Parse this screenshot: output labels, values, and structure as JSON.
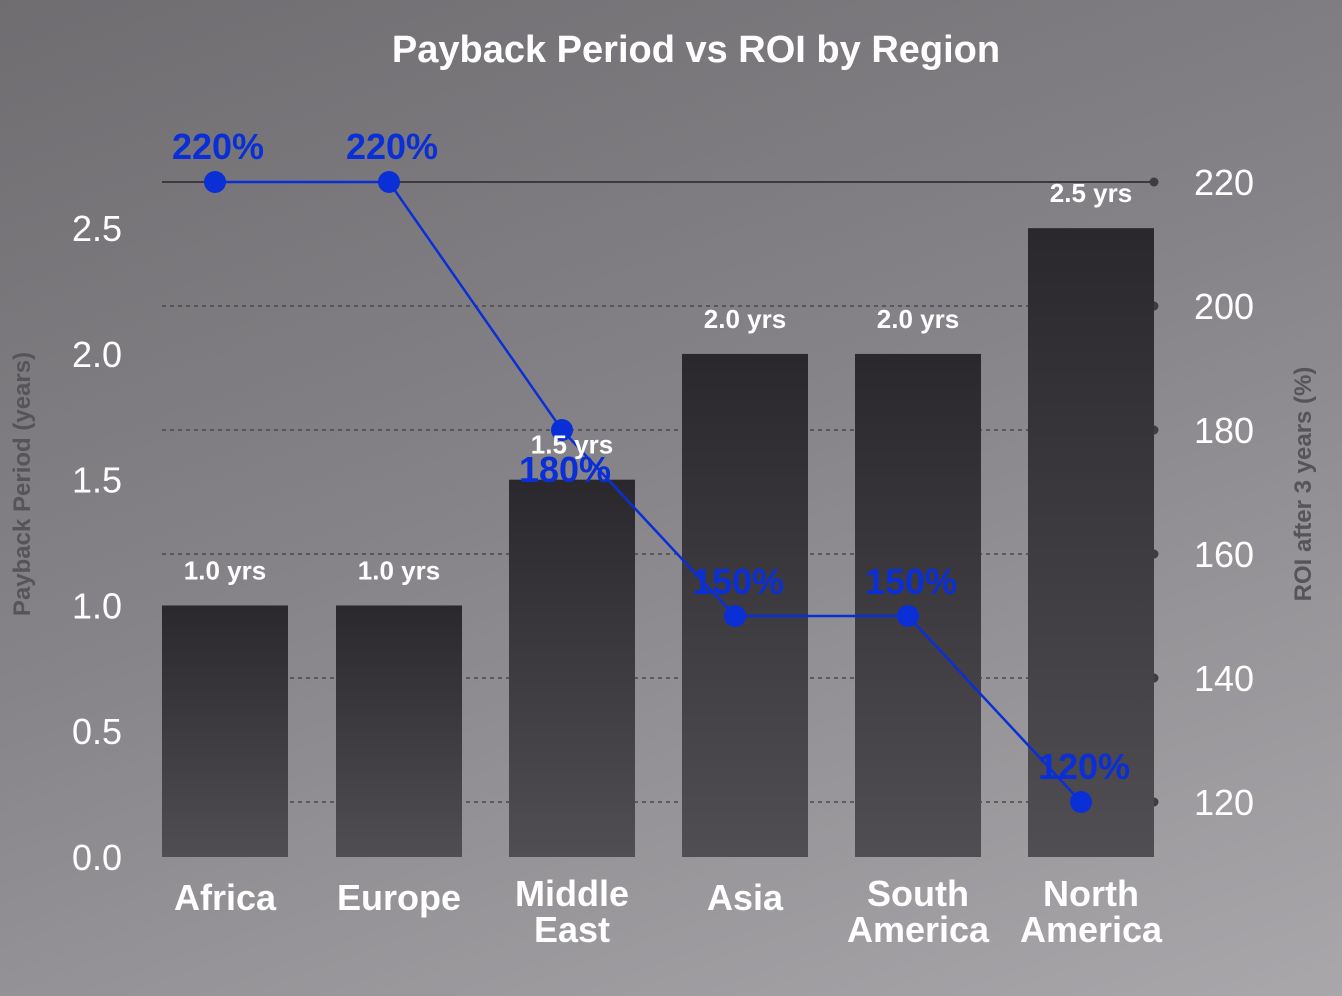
{
  "chart_data": {
    "type": "bar",
    "title": "Payback Period vs ROI by Region",
    "categories": [
      "Africa",
      "Europe",
      "Middle East",
      "Asia",
      "South America",
      "North America"
    ],
    "y_left": {
      "label": "Payback Period (years)",
      "ylim": [
        0,
        2.75
      ],
      "ticks": [
        "0.0",
        "0.5",
        "1.0",
        "1.5",
        "2.0",
        "2.5"
      ]
    },
    "y_right": {
      "label": "ROI after 3 years (%)",
      "ylim": [
        111.5,
        221
      ],
      "ticks": [
        "120",
        "140",
        "160",
        "180",
        "200",
        "220"
      ]
    },
    "series": [
      {
        "values": [
          1.0,
          1.0,
          1.5,
          2.0,
          2.0,
          2.5
        ],
        "labels": [
          "1.0 yrs",
          "1.0 yrs",
          "1.5 yrs",
          "2.0 yrs",
          "2.0 yrs",
          "2.5 yrs"
        ],
        "axis": "left",
        "kind": "bar",
        "color": "#2b292d"
      },
      {
        "values": [
          220,
          220,
          180,
          150,
          150,
          120
        ],
        "labels": [
          "220%",
          "220%",
          "180%",
          "150%",
          "150%",
          "120%"
        ],
        "axis": "right",
        "kind": "line",
        "color": "#0a2fd6"
      }
    ],
    "grid": true
  }
}
